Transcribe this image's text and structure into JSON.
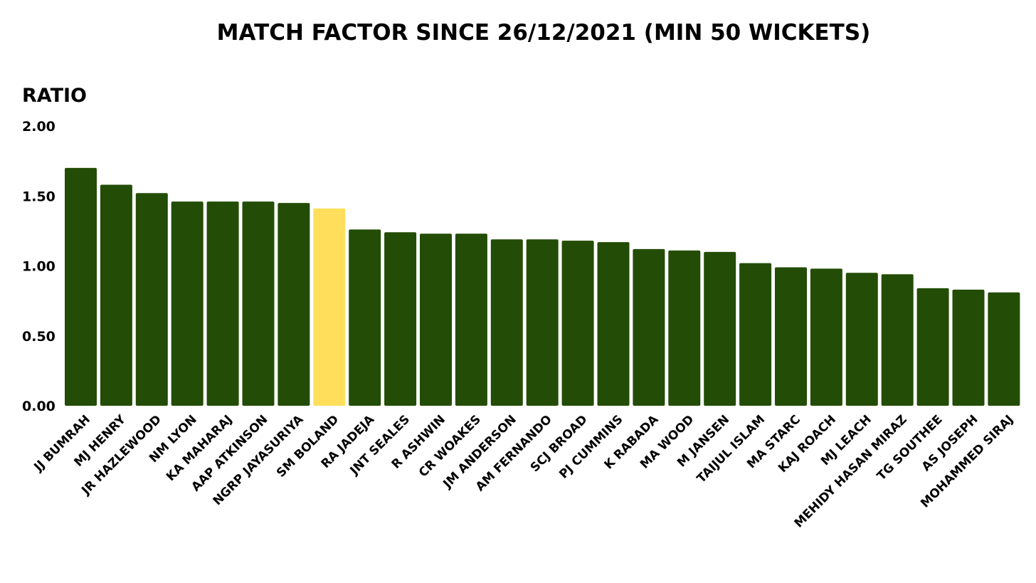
{
  "chart_data": {
    "type": "bar",
    "title": "MATCH FACTOR SINCE 26/12/2021 (MIN 50 WICKETS)",
    "ylabel": "RATIO",
    "xlabel": "",
    "ylim": [
      0,
      2
    ],
    "yticks": [
      "0.00",
      "0.50",
      "1.00",
      "1.50",
      "2.00"
    ],
    "grid": false,
    "colors": {
      "default": "#234d06",
      "highlight": "#ffde5b"
    },
    "highlight": "SM BOLAND",
    "categories": [
      "JJ BUMRAH",
      "MJ HENRY",
      "JR HAZLEWOOD",
      "NM LYON",
      "KA MAHARAJ",
      "AAP ATKINSON",
      "NGRP JAYASURIYA",
      "SM BOLAND",
      "RA JADEJA",
      "JNT SEALES",
      "R ASHWIN",
      "CR WOAKES",
      "JM ANDERSON",
      "AM FERNANDO",
      "SCJ BROAD",
      "PJ CUMMINS",
      "K RABADA",
      "MA WOOD",
      "M JANSEN",
      "TAIJUL ISLAM",
      "MA STARC",
      "KAJ ROACH",
      "MJ LEACH",
      "MEHIDY HASAN MIRAZ",
      "TG SOUTHEE",
      "AS JOSEPH",
      "MOHAMMED SIRAJ"
    ],
    "values": [
      1.7,
      1.58,
      1.52,
      1.46,
      1.46,
      1.46,
      1.45,
      1.41,
      1.26,
      1.24,
      1.23,
      1.23,
      1.19,
      1.19,
      1.18,
      1.17,
      1.12,
      1.11,
      1.1,
      1.02,
      0.99,
      0.98,
      0.95,
      0.94,
      0.84,
      0.83,
      0.81
    ]
  }
}
